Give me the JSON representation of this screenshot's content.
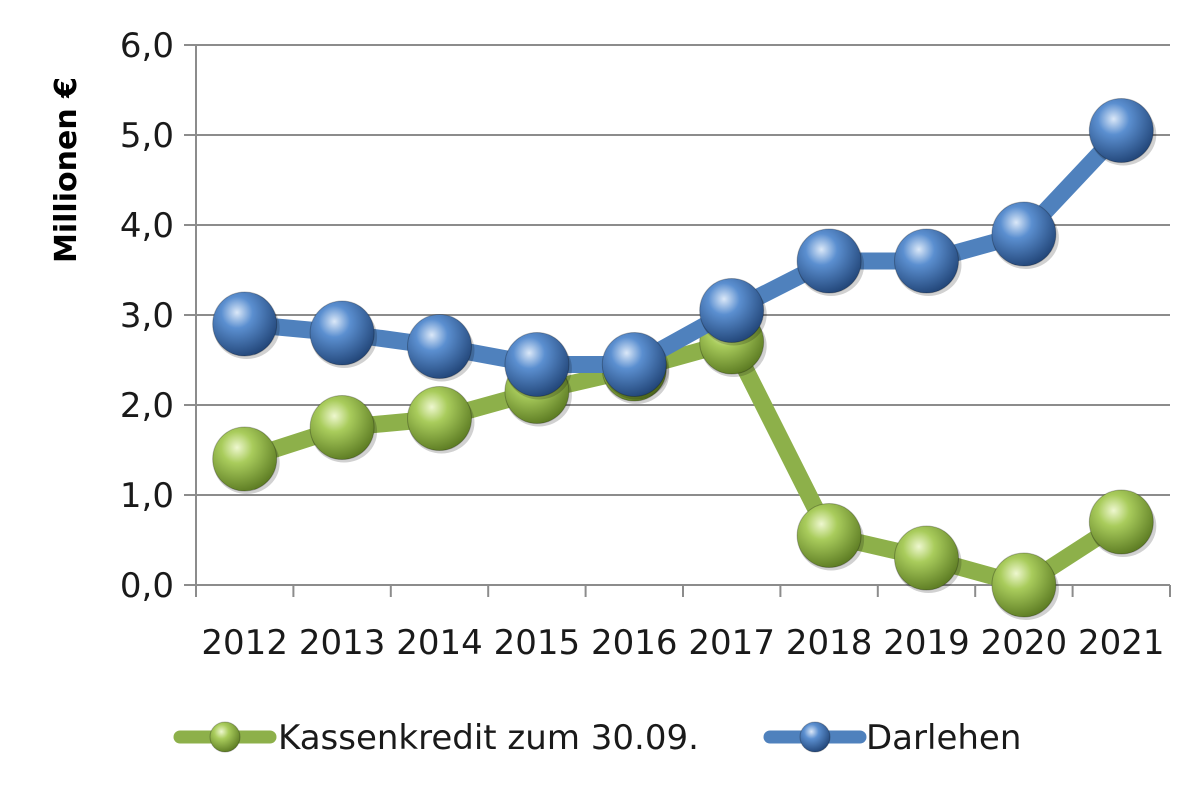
{
  "chart_data": {
    "type": "line",
    "title": "",
    "xlabel": "",
    "ylabel": "Millionen €",
    "categories": [
      "2012",
      "2013",
      "2014",
      "2015",
      "2016",
      "2017",
      "2018",
      "2019",
      "2020",
      "2021"
    ],
    "ylim": [
      0,
      6
    ],
    "yticks": [
      "0,0",
      "1,0",
      "2,0",
      "3,0",
      "4,0",
      "5,0",
      "6,0"
    ],
    "grid": true,
    "legend_position": "bottom",
    "series": [
      {
        "name": "Kassenkredit zum 30.09.",
        "color": "#8db04a",
        "values": [
          1.4,
          1.75,
          1.85,
          2.15,
          2.4,
          2.7,
          0.55,
          0.3,
          0.0,
          0.7
        ]
      },
      {
        "name": "Darlehen",
        "color": "#4f81bd",
        "values": [
          2.9,
          2.8,
          2.65,
          2.45,
          2.45,
          3.05,
          3.6,
          3.6,
          3.9,
          5.05
        ]
      }
    ]
  }
}
